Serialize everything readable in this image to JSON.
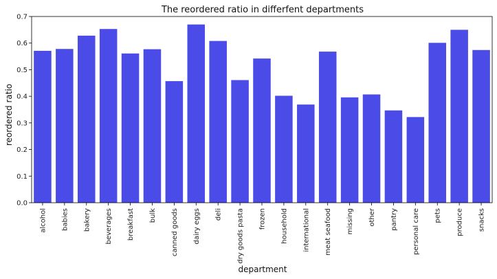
{
  "chart_data": {
    "type": "bar",
    "title": "The reordered ratio in differfent departments",
    "xlabel": "department",
    "ylabel": "reordered ratio",
    "categories": [
      "alcohol",
      "babies",
      "bakery",
      "beverages",
      "breakfast",
      "bulk",
      "canned goods",
      "dairy eggs",
      "deli",
      "dry goods pasta",
      "frozen",
      "household",
      "international",
      "meat seafood",
      "missing",
      "other",
      "pantry",
      "personal care",
      "pets",
      "produce",
      "snacks"
    ],
    "values": [
      0.571,
      0.578,
      0.628,
      0.653,
      0.561,
      0.577,
      0.457,
      0.67,
      0.608,
      0.461,
      0.542,
      0.402,
      0.369,
      0.568,
      0.396,
      0.407,
      0.347,
      0.322,
      0.601,
      0.65,
      0.574
    ],
    "ylim": [
      0,
      0.7
    ],
    "yticks": [
      "0.0",
      "0.1",
      "0.2",
      "0.3",
      "0.4",
      "0.5",
      "0.6",
      "0.7"
    ],
    "bar_color": "#4b4be8",
    "grid": false,
    "legend": "none"
  }
}
